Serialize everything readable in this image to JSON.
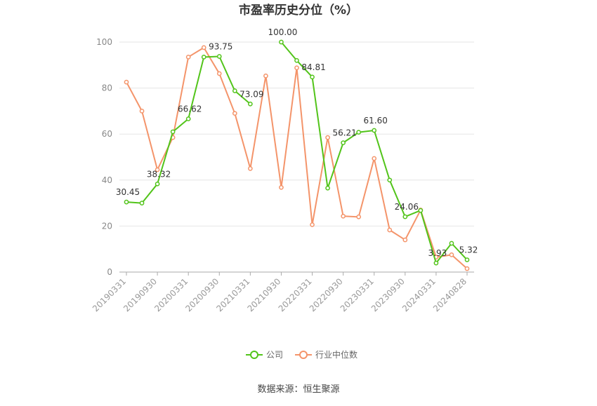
{
  "chart_data": {
    "type": "line",
    "title": "市盈率历史分位（%）",
    "source": "数据来源：恒生聚源",
    "ylim": [
      0,
      100
    ],
    "yticks": [
      "0",
      "20",
      "40",
      "60",
      "80",
      "100"
    ],
    "grid": true,
    "legend_position": "bottom",
    "xtick_labels": [
      "20190331",
      "20190930",
      "20200331",
      "20200930",
      "20210331",
      "20210930",
      "20220331",
      "20220930",
      "20230331",
      "20230930",
      "20240331",
      "20240828"
    ],
    "x": [
      "20190331",
      "20190630",
      "20190930",
      "20191231",
      "20200331",
      "20200630",
      "20200930",
      "20201231",
      "20210331",
      "20210630",
      "20210930",
      "20211231",
      "20220331",
      "20220630",
      "20220930",
      "20221231",
      "20230331",
      "20230630",
      "20230930",
      "20231231",
      "20240331",
      "20240630",
      "20240828"
    ],
    "series": [
      {
        "name": "公司",
        "color": "#52c41a",
        "values": [
          30.45,
          30.0,
          38.32,
          61.0,
          66.62,
          93.5,
          93.75,
          78.8,
          73.09,
          null,
          100.0,
          92.0,
          84.81,
          36.5,
          56.21,
          60.8,
          61.6,
          40.0,
          24.06,
          26.8,
          3.93,
          12.5,
          5.32
        ]
      },
      {
        "name": "行业中位数",
        "color": "#f4946a",
        "values": [
          82.6,
          70.0,
          44.5,
          58.5,
          93.5,
          97.6,
          86.3,
          69.0,
          45.0,
          85.3,
          36.8,
          88.8,
          20.6,
          58.5,
          24.3,
          24.0,
          49.4,
          18.3,
          14.0,
          27.0,
          6.5,
          7.5,
          1.5
        ]
      }
    ],
    "data_labels": [
      {
        "series": 0,
        "index": 0,
        "text": "30.45"
      },
      {
        "series": 0,
        "index": 2,
        "text": "38.32"
      },
      {
        "series": 0,
        "index": 4,
        "text": "66.62"
      },
      {
        "series": 0,
        "index": 6,
        "text": "93.75"
      },
      {
        "series": 0,
        "index": 8,
        "text": "73.09"
      },
      {
        "series": 0,
        "index": 10,
        "text": "100.00"
      },
      {
        "series": 0,
        "index": 12,
        "text": "84.81"
      },
      {
        "series": 0,
        "index": 14,
        "text": "56.21"
      },
      {
        "series": 0,
        "index": 16,
        "text": "61.60"
      },
      {
        "series": 0,
        "index": 18,
        "text": "24.06"
      },
      {
        "series": 0,
        "index": 20,
        "text": "3.93"
      },
      {
        "series": 0,
        "index": 22,
        "text": "5.32"
      }
    ]
  }
}
